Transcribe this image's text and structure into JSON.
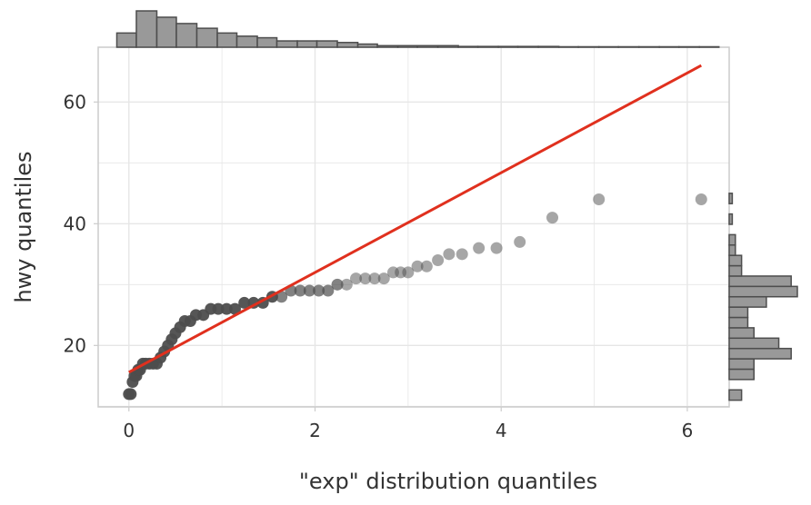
{
  "chart_data": {
    "type": "scatter",
    "xlabel": "\"exp\" distribution quantiles",
    "ylabel": "hwy quantiles",
    "xlim": [
      -0.33,
      6.45
    ],
    "ylim": [
      9.9,
      69.0
    ],
    "x_ticks": [
      {
        "value": 0,
        "label": "0"
      },
      {
        "value": 2,
        "label": "2"
      },
      {
        "value": 4,
        "label": "4"
      },
      {
        "value": 6,
        "label": "6"
      }
    ],
    "y_ticks": [
      {
        "value": 20,
        "label": "20"
      },
      {
        "value": 40,
        "label": "40"
      },
      {
        "value": 60,
        "label": "60"
      }
    ],
    "grid": true,
    "colors": {
      "points": "#4d4d4d",
      "reference_line": "#e0301e",
      "hist_fill": "#999999",
      "hist_stroke": "#4d4d4d",
      "panel_border": "#cccccc",
      "grid": "#e6e6e6"
    },
    "points": [
      {
        "x": 0.0,
        "y": 12
      },
      {
        "x": 0.02,
        "y": 12
      },
      {
        "x": 0.04,
        "y": 14
      },
      {
        "x": 0.06,
        "y": 15
      },
      {
        "x": 0.08,
        "y": 15
      },
      {
        "x": 0.1,
        "y": 16
      },
      {
        "x": 0.12,
        "y": 16
      },
      {
        "x": 0.15,
        "y": 17
      },
      {
        "x": 0.18,
        "y": 17
      },
      {
        "x": 0.22,
        "y": 17
      },
      {
        "x": 0.26,
        "y": 17
      },
      {
        "x": 0.3,
        "y": 17
      },
      {
        "x": 0.34,
        "y": 18
      },
      {
        "x": 0.38,
        "y": 19
      },
      {
        "x": 0.42,
        "y": 20
      },
      {
        "x": 0.46,
        "y": 21
      },
      {
        "x": 0.5,
        "y": 22
      },
      {
        "x": 0.55,
        "y": 23
      },
      {
        "x": 0.6,
        "y": 24
      },
      {
        "x": 0.66,
        "y": 24
      },
      {
        "x": 0.72,
        "y": 25
      },
      {
        "x": 0.8,
        "y": 25
      },
      {
        "x": 0.88,
        "y": 26
      },
      {
        "x": 0.96,
        "y": 26
      },
      {
        "x": 1.05,
        "y": 26
      },
      {
        "x": 1.14,
        "y": 26
      },
      {
        "x": 1.24,
        "y": 27
      },
      {
        "x": 1.34,
        "y": 27
      },
      {
        "x": 1.44,
        "y": 27
      },
      {
        "x": 1.54,
        "y": 28
      },
      {
        "x": 1.64,
        "y": 28
      },
      {
        "x": 1.74,
        "y": 29
      },
      {
        "x": 1.84,
        "y": 29
      },
      {
        "x": 1.94,
        "y": 29
      },
      {
        "x": 2.04,
        "y": 29
      },
      {
        "x": 2.14,
        "y": 29
      },
      {
        "x": 2.24,
        "y": 30
      },
      {
        "x": 2.34,
        "y": 30
      },
      {
        "x": 2.44,
        "y": 31
      },
      {
        "x": 2.54,
        "y": 31
      },
      {
        "x": 2.64,
        "y": 31
      },
      {
        "x": 2.74,
        "y": 31
      },
      {
        "x": 2.84,
        "y": 32
      },
      {
        "x": 2.92,
        "y": 32
      },
      {
        "x": 3.0,
        "y": 32
      },
      {
        "x": 3.1,
        "y": 33
      },
      {
        "x": 3.2,
        "y": 33
      },
      {
        "x": 3.32,
        "y": 34
      },
      {
        "x": 3.44,
        "y": 35
      },
      {
        "x": 3.58,
        "y": 35
      },
      {
        "x": 3.76,
        "y": 36
      },
      {
        "x": 3.95,
        "y": 36
      },
      {
        "x": 4.2,
        "y": 37
      },
      {
        "x": 4.55,
        "y": 41
      },
      {
        "x": 5.05,
        "y": 44
      },
      {
        "x": 6.15,
        "y": 44
      }
    ],
    "reference_line": {
      "x": [
        0.0,
        6.15
      ],
      "y": [
        15.6,
        66.0
      ]
    },
    "top_histogram": {
      "bins": [
        {
          "x0": -0.13,
          "x1": 0.08,
          "count": 9
        },
        {
          "x0": 0.08,
          "x1": 0.3,
          "count": 23
        },
        {
          "x0": 0.3,
          "x1": 0.51,
          "count": 19
        },
        {
          "x0": 0.51,
          "x1": 0.73,
          "count": 15
        },
        {
          "x0": 0.73,
          "x1": 0.95,
          "count": 12
        },
        {
          "x0": 0.95,
          "x1": 1.16,
          "count": 9
        },
        {
          "x0": 1.16,
          "x1": 1.38,
          "count": 7
        },
        {
          "x0": 1.38,
          "x1": 1.59,
          "count": 6
        },
        {
          "x0": 1.59,
          "x1": 1.81,
          "count": 4
        },
        {
          "x0": 1.81,
          "x1": 2.02,
          "count": 4
        },
        {
          "x0": 2.02,
          "x1": 2.24,
          "count": 4
        },
        {
          "x0": 2.24,
          "x1": 2.46,
          "count": 3
        },
        {
          "x0": 2.46,
          "x1": 2.67,
          "count": 2
        },
        {
          "x0": 2.67,
          "x1": 2.89,
          "count": 1
        },
        {
          "x0": 2.89,
          "x1": 3.1,
          "count": 1
        },
        {
          "x0": 3.1,
          "x1": 3.32,
          "count": 1
        },
        {
          "x0": 3.32,
          "x1": 3.54,
          "count": 1
        },
        {
          "x0": 3.54,
          "x1": 3.75,
          "count": 0.5
        },
        {
          "x0": 3.75,
          "x1": 3.97,
          "count": 0.5
        },
        {
          "x0": 3.97,
          "x1": 4.18,
          "count": 0.5
        },
        {
          "x0": 4.18,
          "x1": 4.4,
          "count": 0.5
        },
        {
          "x0": 4.4,
          "x1": 4.62,
          "count": 0.5
        },
        {
          "x0": 4.62,
          "x1": 4.83,
          "count": 0.3
        },
        {
          "x0": 4.83,
          "x1": 5.05,
          "count": 0.3
        },
        {
          "x0": 5.05,
          "x1": 5.26,
          "count": 0.3
        },
        {
          "x0": 5.26,
          "x1": 5.48,
          "count": 0.3
        },
        {
          "x0": 5.48,
          "x1": 5.7,
          "count": 0.3
        },
        {
          "x0": 5.7,
          "x1": 5.91,
          "count": 0.3
        },
        {
          "x0": 5.91,
          "x1": 6.13,
          "count": 0.3
        },
        {
          "x0": 6.13,
          "x1": 6.34,
          "count": 0.3
        }
      ]
    },
    "right_histogram": {
      "bins": [
        {
          "y0": 11.0,
          "y1": 12.7,
          "count": 2
        },
        {
          "y0": 12.7,
          "y1": 14.4,
          "count": 0
        },
        {
          "y0": 14.4,
          "y1": 16.1,
          "count": 4
        },
        {
          "y0": 16.1,
          "y1": 17.8,
          "count": 4
        },
        {
          "y0": 17.8,
          "y1": 19.5,
          "count": 10
        },
        {
          "y0": 19.5,
          "y1": 21.2,
          "count": 8
        },
        {
          "y0": 21.2,
          "y1": 22.9,
          "count": 4
        },
        {
          "y0": 22.9,
          "y1": 24.6,
          "count": 3
        },
        {
          "y0": 24.6,
          "y1": 26.3,
          "count": 3
        },
        {
          "y0": 26.3,
          "y1": 28.0,
          "count": 6
        },
        {
          "y0": 28.0,
          "y1": 29.7,
          "count": 11
        },
        {
          "y0": 29.7,
          "y1": 31.4,
          "count": 10
        },
        {
          "y0": 31.4,
          "y1": 33.1,
          "count": 2
        },
        {
          "y0": 33.1,
          "y1": 34.8,
          "count": 2
        },
        {
          "y0": 34.8,
          "y1": 36.5,
          "count": 1
        },
        {
          "y0": 36.5,
          "y1": 38.2,
          "count": 1
        },
        {
          "y0": 38.2,
          "y1": 39.9,
          "count": 0
        },
        {
          "y0": 39.9,
          "y1": 41.6,
          "count": 0.5
        },
        {
          "y0": 41.6,
          "y1": 43.3,
          "count": 0
        },
        {
          "y0": 43.3,
          "y1": 45.0,
          "count": 0.5
        }
      ]
    }
  }
}
